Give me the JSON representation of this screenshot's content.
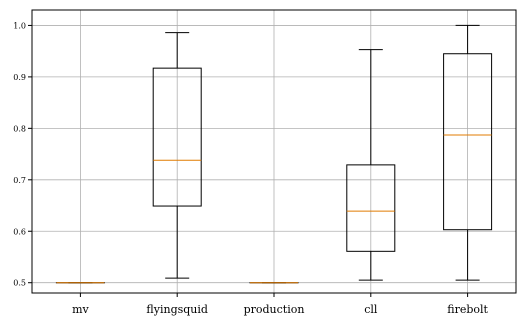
{
  "chart_data": {
    "type": "box",
    "title": "",
    "xlabel": "",
    "ylabel": "",
    "ylim": [
      0.48,
      1.03
    ],
    "yticks": [
      0.5,
      0.6,
      0.7,
      0.8,
      0.9,
      1.0
    ],
    "ytick_labels": [
      "0.5",
      "0.6",
      "0.7",
      "0.8",
      "0.9",
      "1.0"
    ],
    "grid": true,
    "colors": {
      "box": "#000000",
      "median": "#e07b00",
      "grid": "#b0b0b0"
    },
    "categories": [
      "mv",
      "flyingsquid",
      "production",
      "cll",
      "firebolt"
    ],
    "boxes": [
      {
        "category": "mv",
        "whislo": 0.5,
        "q1": 0.5,
        "med": 0.5,
        "q3": 0.5,
        "whishi": 0.5
      },
      {
        "category": "flyingsquid",
        "whislo": 0.509,
        "q1": 0.649,
        "med": 0.738,
        "q3": 0.917,
        "whishi": 0.986
      },
      {
        "category": "production",
        "whislo": 0.5,
        "q1": 0.5,
        "med": 0.5,
        "q3": 0.5,
        "whishi": 0.5
      },
      {
        "category": "cll",
        "whislo": 0.505,
        "q1": 0.561,
        "med": 0.639,
        "q3": 0.729,
        "whishi": 0.953
      },
      {
        "category": "firebolt",
        "whislo": 0.505,
        "q1": 0.603,
        "med": 0.787,
        "q3": 0.945,
        "whishi": 1.0
      }
    ]
  }
}
